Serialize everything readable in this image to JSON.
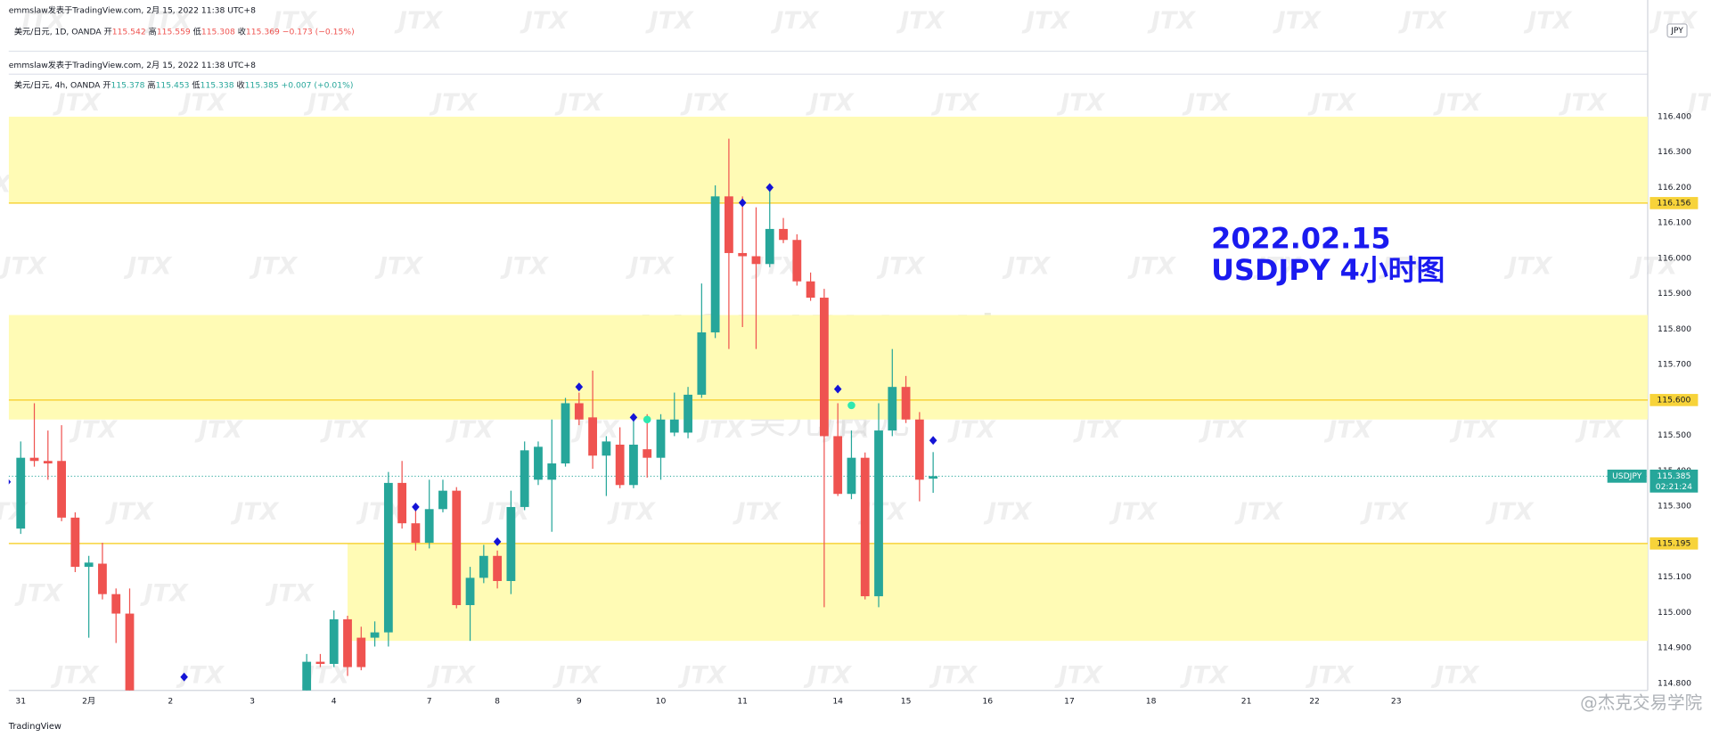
{
  "header_top": "emmslaw发表于TradingView.com, 2月 15, 2022 11:38 UTC+8",
  "legend_top": {
    "symbol": "美元/日元, 1D, OANDA",
    "o_label": "开",
    "o": "115.542",
    "h_label": "高",
    "h": "115.559",
    "l_label": "低",
    "l": "115.308",
    "c_label": "收",
    "c": "115.369",
    "change": "−0.173 (−0.15%)"
  },
  "header_main": "emmslaw发表于TradingView.com, 2月 15, 2022 11:38 UTC+8",
  "watermark_logo": "JTX",
  "watermark_symbol": "USDJPY, 4h",
  "watermark_name": "美元/日元",
  "currency": "JPY",
  "footer": "TradingView",
  "credit": "@杰克交易学院",
  "chart_data": {
    "type": "candlestick",
    "legend": {
      "symbol": "美元/日元, 4h, OANDA",
      "o_label": "开",
      "o": "115.378",
      "h_label": "高",
      "h": "115.453",
      "l_label": "低",
      "l": "115.338",
      "c_label": "收",
      "c": "115.385",
      "change": "+0.007 (+0.01%)"
    },
    "annotations": [
      "2022.02.15",
      "USDJPY 4小时图"
    ],
    "up_color": "#26a69a",
    "down_color": "#ef5350",
    "xlim": [
      -0.88,
      119.47
    ],
    "ylim": [
      114.78,
      116.52
    ],
    "xticks": [
      {
        "value": 0,
        "label": "31"
      },
      {
        "value": 5,
        "label": "2月"
      },
      {
        "value": 11,
        "label": "2"
      },
      {
        "value": 17,
        "label": "3"
      },
      {
        "value": 23,
        "label": "4"
      },
      {
        "value": 30,
        "label": "7"
      },
      {
        "value": 35,
        "label": "8"
      },
      {
        "value": 41,
        "label": "9"
      },
      {
        "value": 47,
        "label": "10"
      },
      {
        "value": 53,
        "label": "11"
      },
      {
        "value": 60,
        "label": "14"
      },
      {
        "value": 65,
        "label": "15"
      },
      {
        "value": 71,
        "label": "16"
      },
      {
        "value": 77,
        "label": "17"
      },
      {
        "value": 83,
        "label": "18"
      },
      {
        "value": 90,
        "label": "21"
      },
      {
        "value": 95,
        "label": "22"
      },
      {
        "value": 101,
        "label": "23"
      }
    ],
    "yticks": [
      {
        "value": 116.4,
        "label": "116.400"
      },
      {
        "value": 116.3,
        "label": "116.300"
      },
      {
        "value": 116.2,
        "label": "116.200"
      },
      {
        "value": 116.1,
        "label": "116.100"
      },
      {
        "value": 116.0,
        "label": "116.000"
      },
      {
        "value": 115.9,
        "label": "115.900"
      },
      {
        "value": 115.8,
        "label": "115.800"
      },
      {
        "value": 115.7,
        "label": "115.700"
      },
      {
        "value": 115.6,
        "label": "115.600"
      },
      {
        "value": 115.5,
        "label": "115.500"
      },
      {
        "value": 115.4,
        "label": "115.400"
      },
      {
        "value": 115.3,
        "label": "115.300"
      },
      {
        "value": 115.2,
        "label": "115.200"
      },
      {
        "value": 115.1,
        "label": "115.100"
      },
      {
        "value": 115.0,
        "label": "115.000"
      },
      {
        "value": 114.9,
        "label": "114.900"
      },
      {
        "value": 114.8,
        "label": "114.800"
      }
    ],
    "zones": [
      {
        "low": 116.156,
        "high": 116.4
      },
      {
        "low": 115.545,
        "high": 115.84
      },
      {
        "low": 114.92,
        "high": 115.195,
        "x_start": 24
      }
    ],
    "zone_color": "#fffbb5",
    "level_color": "#f7d33a",
    "levels": {
      "values": [
        116.156,
        115.6,
        115.195
      ],
      "value_labels": [
        "116.156",
        "115.600",
        "115.195"
      ]
    },
    "last": {
      "symbol": "USDJPY",
      "value": 115.385,
      "countdown": "02:21:24"
    },
    "candles": {
      "x": [
        0,
        1,
        2,
        3,
        4,
        5,
        6,
        7,
        8,
        21,
        22,
        23,
        24,
        25,
        26,
        27,
        28,
        29,
        30,
        31,
        32,
        33,
        34,
        35,
        36,
        37,
        38,
        39,
        40,
        41,
        42,
        43,
        44,
        45,
        46,
        47,
        48,
        49,
        50,
        51,
        52,
        53,
        54,
        55,
        56,
        57,
        58,
        59,
        60,
        61,
        62,
        63,
        64,
        65,
        66,
        67
      ],
      "open": [
        115.237,
        115.437,
        115.428,
        115.428,
        115.268,
        115.129,
        115.138,
        115.052,
        114.997,
        114.76,
        114.861,
        114.855,
        114.981,
        114.929,
        114.929,
        114.944,
        115.366,
        115.252,
        115.197,
        115.292,
        115.344,
        115.021,
        115.098,
        115.16,
        115.089,
        115.298,
        115.375,
        115.375,
        115.421,
        115.591,
        115.551,
        115.443,
        115.474,
        115.36,
        115.461,
        115.437,
        115.508,
        115.508,
        115.615,
        115.791,
        116.175,
        116.015,
        116.006,
        115.984,
        116.083,
        116.052,
        115.935,
        115.889,
        115.498,
        115.335,
        115.437,
        115.046,
        115.514,
        115.637,
        115.545,
        115.378
      ],
      "high": [
        115.483,
        115.591,
        115.514,
        115.529,
        115.283,
        115.16,
        115.197,
        115.068,
        115.068,
        114.883,
        114.883,
        115.006,
        114.991,
        114.96,
        114.975,
        115.397,
        115.428,
        115.298,
        115.375,
        115.375,
        115.354,
        115.129,
        115.191,
        115.175,
        115.344,
        115.483,
        115.483,
        115.545,
        115.606,
        115.621,
        115.683,
        115.498,
        115.523,
        115.56,
        115.56,
        115.56,
        115.621,
        115.637,
        115.929,
        116.206,
        116.338,
        116.175,
        116.144,
        116.191,
        116.114,
        116.068,
        115.96,
        115.914,
        115.591,
        115.514,
        115.452,
        115.591,
        115.744,
        115.668,
        115.566,
        115.453
      ],
      "low": [
        115.222,
        115.412,
        115.375,
        115.258,
        115.114,
        114.929,
        115.037,
        114.914,
        114.729,
        114.745,
        114.846,
        114.846,
        114.821,
        114.837,
        114.904,
        114.904,
        115.237,
        115.175,
        115.181,
        115.283,
        115.012,
        114.92,
        115.083,
        115.068,
        115.052,
        115.289,
        115.36,
        115.228,
        115.412,
        115.529,
        115.406,
        115.329,
        115.351,
        115.351,
        115.381,
        115.375,
        115.498,
        115.492,
        115.606,
        115.775,
        115.744,
        115.806,
        115.744,
        115.975,
        116.043,
        115.923,
        115.88,
        115.015,
        115.329,
        115.32,
        115.037,
        115.015,
        115.498,
        115.535,
        115.314,
        115.338
      ],
      "close": [
        115.437,
        115.428,
        115.421,
        115.268,
        115.129,
        115.141,
        115.052,
        114.997,
        114.76,
        114.861,
        114.855,
        114.981,
        114.846,
        114.846,
        114.944,
        115.366,
        115.252,
        115.197,
        115.292,
        115.344,
        115.021,
        115.098,
        115.16,
        115.089,
        115.298,
        115.458,
        115.468,
        115.421,
        115.591,
        115.545,
        115.443,
        115.483,
        115.36,
        115.474,
        115.437,
        115.545,
        115.545,
        115.615,
        115.791,
        116.175,
        116.015,
        116.006,
        115.984,
        116.083,
        116.052,
        115.935,
        115.889,
        115.498,
        115.335,
        115.437,
        115.046,
        115.514,
        115.637,
        115.545,
        115.375,
        115.385
      ]
    },
    "markers": [
      {
        "shape": "diamond",
        "color": "#1414d6",
        "x": [
          -1,
          12,
          29,
          35,
          41,
          45,
          53,
          55,
          60,
          67
        ],
        "values": [
          115.369,
          114.818,
          115.298,
          115.2,
          115.637,
          115.551,
          116.157,
          116.2,
          115.631,
          115.486
        ]
      },
      {
        "shape": "circle",
        "color": "#2ee8b0",
        "x": [
          46,
          61
        ],
        "values": [
          115.545,
          115.585
        ]
      }
    ]
  }
}
